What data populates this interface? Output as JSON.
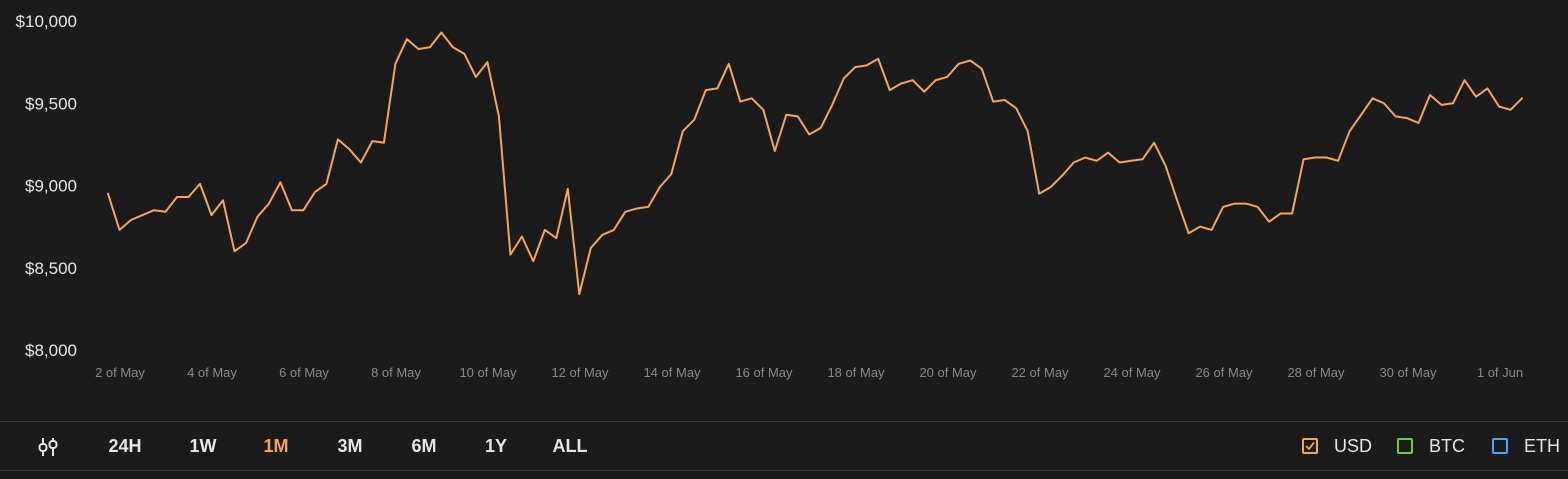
{
  "chart_data": {
    "type": "line",
    "x_ticks": [
      "2 of May",
      "4 of May",
      "6 of May",
      "8 of May",
      "10 of May",
      "12 of May",
      "14 of May",
      "16 of May",
      "18 of May",
      "20 of May",
      "22 of May",
      "24 of May",
      "26 of May",
      "28 of May",
      "30 of May",
      "1 of Jun"
    ],
    "y_ticks": [
      "$8,000",
      "$8,500",
      "$9,000",
      "$9,500",
      "$10,000"
    ],
    "ylim": [
      8000,
      10000
    ],
    "grid": false,
    "line_color": "#f5a55c",
    "series": [
      {
        "values": [
          8950,
          8730,
          8790,
          8820,
          8850,
          8840,
          8930,
          8930,
          9010,
          8820,
          8910,
          8600,
          8650,
          8810,
          8890,
          9020,
          8850,
          8850,
          8960,
          9010,
          9280,
          9220,
          9140,
          9270,
          9260,
          9740,
          9890,
          9830,
          9840,
          9930,
          9840,
          9800,
          9660,
          9750,
          9420,
          8580,
          8690,
          8540,
          8730,
          8680,
          8980,
          8340,
          8620,
          8700,
          8730,
          8840,
          8860,
          8870,
          8990,
          9070,
          9330,
          9400,
          9580,
          9590,
          9740,
          9510,
          9530,
          9460,
          9210,
          9430,
          9420,
          9310,
          9350,
          9490,
          9650,
          9720,
          9730,
          9770,
          9580,
          9620,
          9640,
          9570,
          9640,
          9660,
          9740,
          9760,
          9710,
          9510,
          9520,
          9470,
          9330,
          8950,
          8990,
          9060,
          9140,
          9170,
          9150,
          9200,
          9140,
          9150,
          9160,
          9260,
          9120,
          8910,
          8710,
          8750,
          8730,
          8870,
          8890,
          8890,
          8870,
          8780,
          8830,
          8830,
          9160,
          9170,
          9170,
          9150,
          9330,
          9430,
          9530,
          9500,
          9420,
          9410,
          9380,
          9550,
          9490,
          9500,
          9640,
          9540,
          9590,
          9480,
          9460,
          9530
        ]
      }
    ]
  },
  "toolbar": {
    "ranges": [
      "24H",
      "1W",
      "1M",
      "3M",
      "6M",
      "1Y",
      "ALL"
    ],
    "active_range": "1M",
    "currencies": [
      {
        "label": "USD",
        "checked": true,
        "color": "#f5a55c"
      },
      {
        "label": "BTC",
        "checked": false,
        "color": "#6fcf3a"
      },
      {
        "label": "ETH",
        "checked": false,
        "color": "#4da3ff"
      }
    ]
  }
}
